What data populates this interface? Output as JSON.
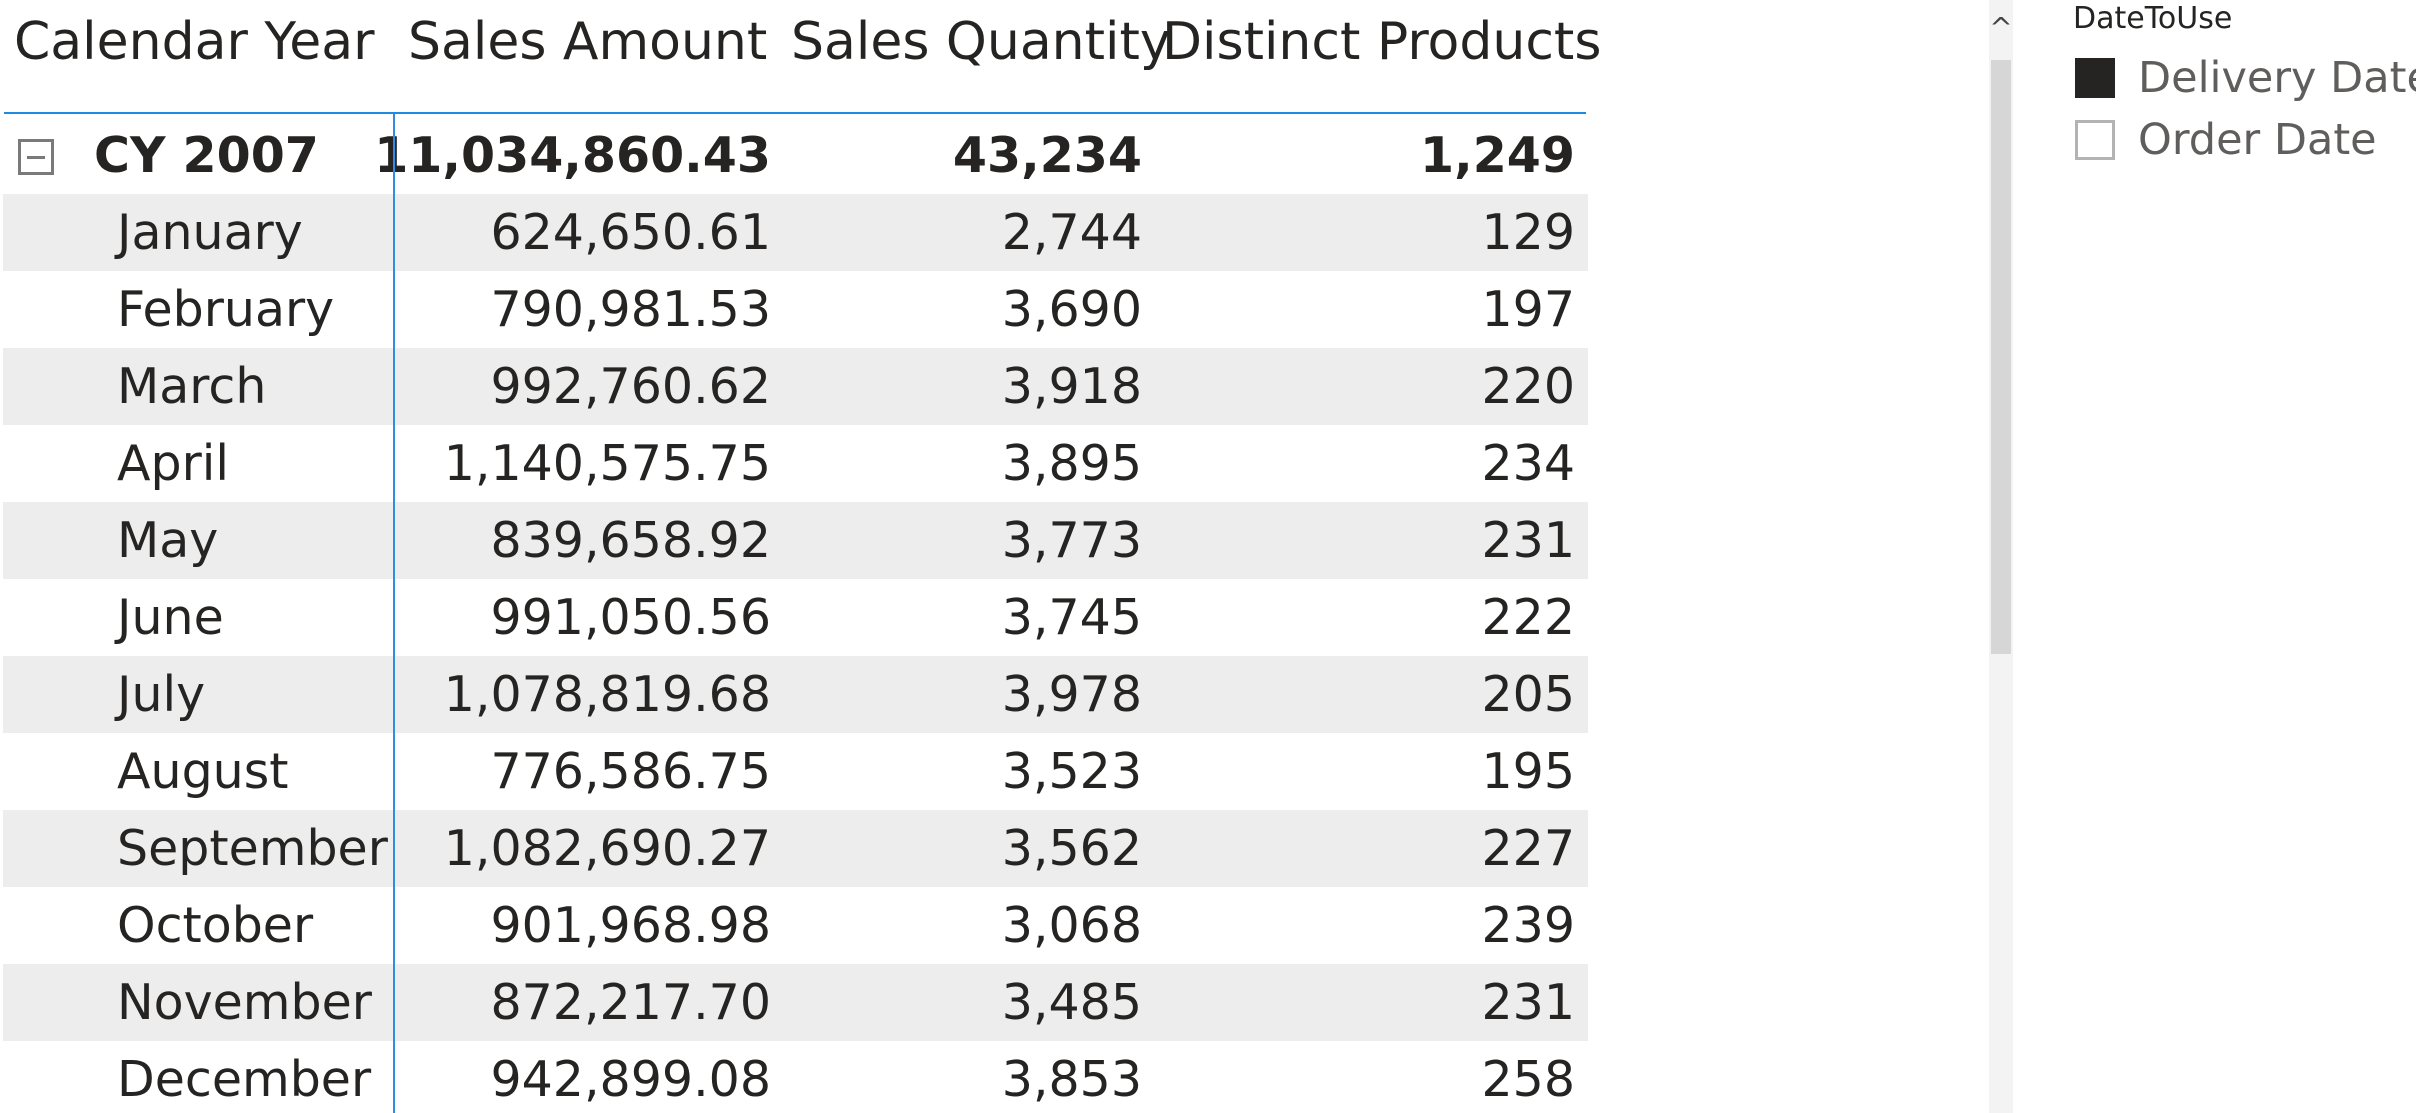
{
  "matrix": {
    "headers": {
      "calendar_year": "Calendar Year",
      "sales_amount": "Sales Amount",
      "sales_quantity": "Sales Quantity",
      "distinct_products": "Distinct Products"
    },
    "year_row": {
      "label": "CY 2007",
      "sales_amount": "11,034,860.43",
      "sales_quantity": "43,234",
      "distinct_products": "1,249"
    },
    "rows": [
      {
        "label": "January",
        "sales_amount": "624,650.61",
        "sales_quantity": "2,744",
        "distinct_products": "129"
      },
      {
        "label": "February",
        "sales_amount": "790,981.53",
        "sales_quantity": "3,690",
        "distinct_products": "197"
      },
      {
        "label": "March",
        "sales_amount": "992,760.62",
        "sales_quantity": "3,918",
        "distinct_products": "220"
      },
      {
        "label": "April",
        "sales_amount": "1,140,575.75",
        "sales_quantity": "3,895",
        "distinct_products": "234"
      },
      {
        "label": "May",
        "sales_amount": "839,658.92",
        "sales_quantity": "3,773",
        "distinct_products": "231"
      },
      {
        "label": "June",
        "sales_amount": "991,050.56",
        "sales_quantity": "3,745",
        "distinct_products": "222"
      },
      {
        "label": "July",
        "sales_amount": "1,078,819.68",
        "sales_quantity": "3,978",
        "distinct_products": "205"
      },
      {
        "label": "August",
        "sales_amount": "776,586.75",
        "sales_quantity": "3,523",
        "distinct_products": "195"
      },
      {
        "label": "September",
        "sales_amount": "1,082,690.27",
        "sales_quantity": "3,562",
        "distinct_products": "227"
      },
      {
        "label": "October",
        "sales_amount": "901,968.98",
        "sales_quantity": "3,068",
        "distinct_products": "239"
      },
      {
        "label": "November",
        "sales_amount": "872,217.70",
        "sales_quantity": "3,485",
        "distinct_products": "231"
      },
      {
        "label": "December",
        "sales_amount": "942,899.08",
        "sales_quantity": "3,853",
        "distinct_products": "258"
      }
    ],
    "collapse_icon": "minus-square-icon",
    "accent_color": "#2f8de4",
    "stripe_color": "#ededed"
  },
  "scrollbar": {
    "up_arrow": "^"
  },
  "slicer": {
    "title": "DateToUse",
    "items": [
      {
        "label": "Delivery Date",
        "checked": true
      },
      {
        "label": "Order Date",
        "checked": false
      }
    ],
    "checked_color": "#252423"
  }
}
